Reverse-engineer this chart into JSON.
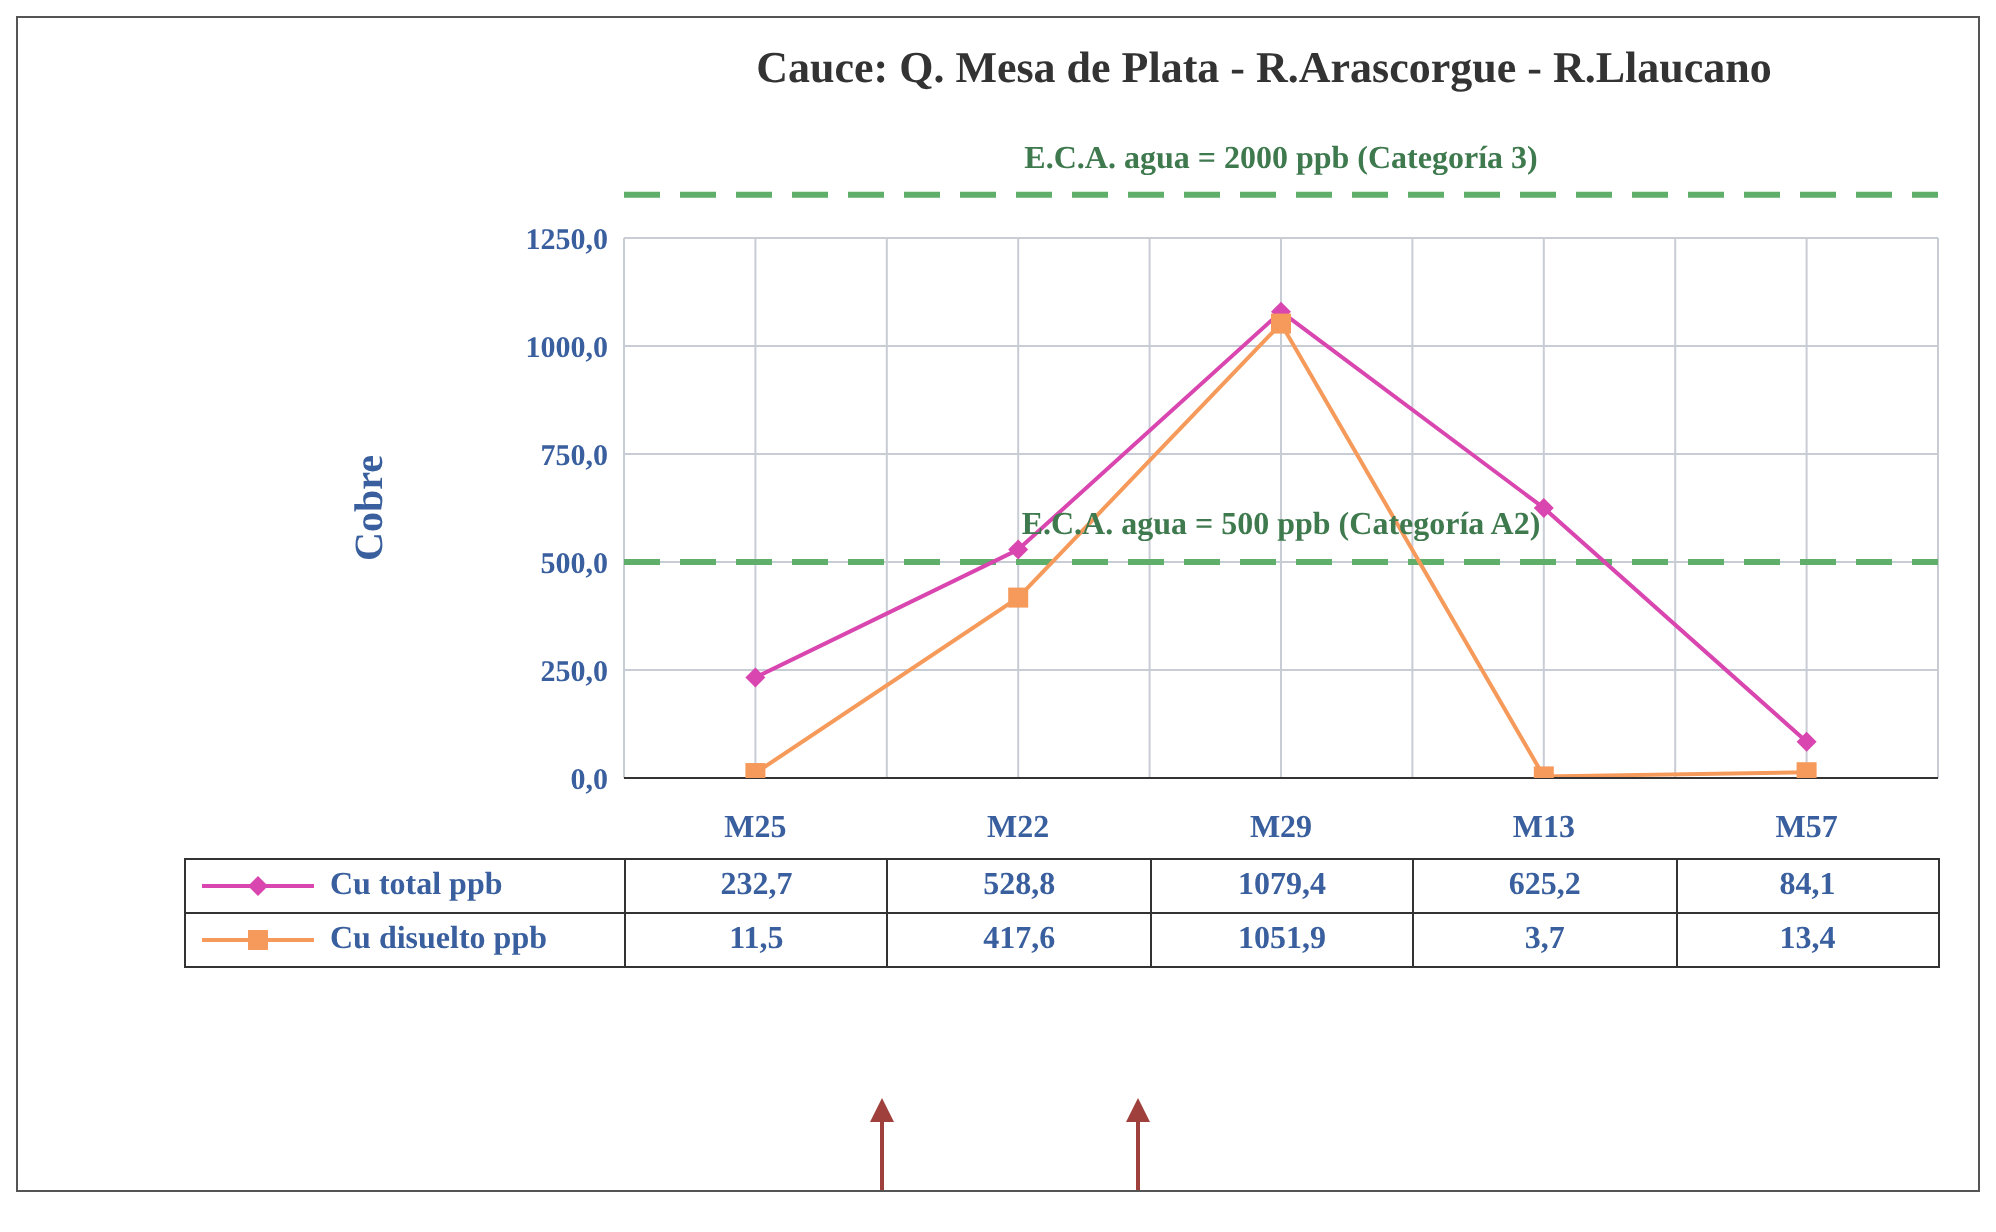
{
  "chart_data": {
    "type": "line",
    "title": "Cauce: Q. Mesa de Plata - R.Arascorgue - R.Llaucano",
    "ylabel": "Cobre",
    "categories": [
      "M25",
      "M22",
      "M29",
      "M13",
      "M57"
    ],
    "series": [
      {
        "name": "Cu total ppb",
        "color": "#d946b0",
        "marker": "diamond",
        "values": [
          232.7,
          528.8,
          1079.4,
          625.2,
          84.1
        ],
        "value_labels": [
          "232,7",
          "528,8",
          "1079,4",
          "625,2",
          "84,1"
        ]
      },
      {
        "name": "Cu disuelto ppb",
        "color": "#f59a5a",
        "marker": "square",
        "values": [
          11.5,
          417.6,
          1051.9,
          3.7,
          13.4
        ],
        "value_labels": [
          "11,5",
          "417,6",
          "1051,9",
          "3,7",
          "13,4"
        ]
      }
    ],
    "ylim": [
      0,
      1250
    ],
    "yticks": [
      {
        "value": 0,
        "label": "0,0"
      },
      {
        "value": 250,
        "label": "250,0"
      },
      {
        "value": 500,
        "label": "500,0"
      },
      {
        "value": 750,
        "label": "750,0"
      },
      {
        "value": 1000,
        "label": "1000,0"
      },
      {
        "value": 1250,
        "label": "1250,0"
      }
    ],
    "ref_lines": [
      {
        "axis": "y",
        "value": 1350,
        "color": "#5fae6a",
        "line_style": "dashed"
      },
      {
        "axis": "y",
        "value": 500,
        "label": "E.C.A. agua = 500 ppb  (Categoría A2)",
        "color": "#5fae6a",
        "line_style": "dashed"
      }
    ],
    "annotations": [
      "E.C.A. agua = 2000 ppb  (Categoría 3)"
    ],
    "grid": true,
    "legend": "bottom",
    "line_style": "solid"
  }
}
